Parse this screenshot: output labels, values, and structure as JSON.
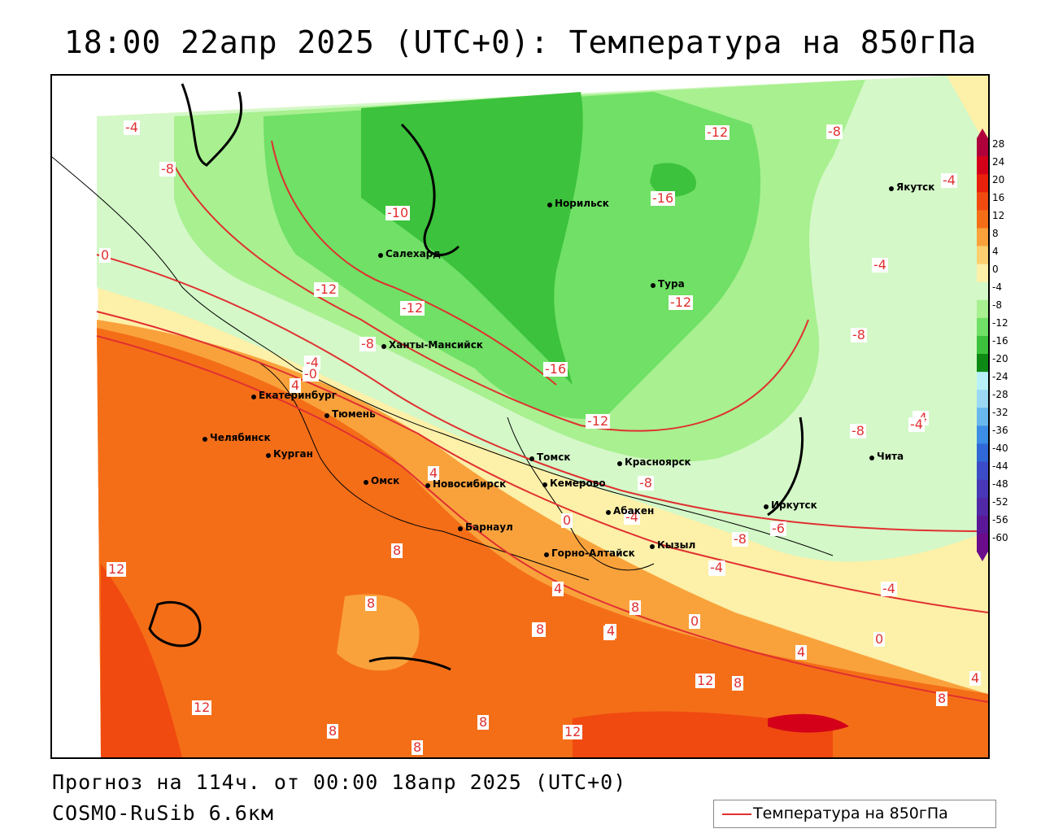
{
  "title": "18:00 22апр 2025 (UTC+0): Температура на 850гПа",
  "forecast_line": "Прогноз на 114ч. от 00:00 18апр 2025 (UTC+0)",
  "model_line": "COSMO-RuSib 6.6км",
  "legend": {
    "label": "Температура на 850гПа",
    "line_color": "#e03030"
  },
  "colorbar": {
    "labels": [
      "28",
      "24",
      "20",
      "16",
      "12",
      "8",
      "4",
      "0",
      "-4",
      "-8",
      "-12",
      "-16",
      "-20",
      "-24",
      "-28",
      "-32",
      "-36",
      "-40",
      "-44",
      "-48",
      "-52",
      "-56",
      "-60"
    ],
    "colors": [
      "#b0003c",
      "#d4001a",
      "#e8200c",
      "#f04a10",
      "#f46e18",
      "#f9a23c",
      "#fcd070",
      "#fdf0a8",
      "#d4f8c8",
      "#a8f090",
      "#70e066",
      "#3cc23c",
      "#0e8a14",
      "#b8f0f8",
      "#9ad8f4",
      "#68b8ee",
      "#3c8ee6",
      "#3068d8",
      "#3c4cc8",
      "#4838b8",
      "#5028a8",
      "#5a1898",
      "#6a0c8c"
    ]
  },
  "cities": [
    {
      "name": "Норильск"
    },
    {
      "name": "Салехард"
    },
    {
      "name": "Тура"
    },
    {
      "name": "Якутск"
    },
    {
      "name": "Ханты-Мансийск"
    },
    {
      "name": "Екатеринбург"
    },
    {
      "name": "Тюмень"
    },
    {
      "name": "Челябинск"
    },
    {
      "name": "Курган"
    },
    {
      "name": "Омск"
    },
    {
      "name": "Новосибирск"
    },
    {
      "name": "Томск"
    },
    {
      "name": "Кемерово"
    },
    {
      "name": "Красноярск"
    },
    {
      "name": "Барнаул"
    },
    {
      "name": "Абакен"
    },
    {
      "name": "Иркутск"
    },
    {
      "name": "Горно-Алтайск"
    },
    {
      "name": "Кызыл"
    },
    {
      "name": "Чита"
    }
  ],
  "isotherm_labels": [
    "-4",
    "-8",
    "-10",
    "0",
    "-12",
    "-12",
    "-8",
    "-4",
    "-0",
    "4",
    "-12",
    "-16",
    "-8",
    "-16",
    "-12",
    "-12",
    "-4",
    "-8",
    "-4",
    "-8",
    "-4",
    "4",
    "8",
    "8",
    "12",
    "12",
    "8",
    "8",
    "8",
    "4",
    "0",
    "-4",
    "-8",
    "8",
    "-8",
    "-4",
    "4",
    "8",
    "0",
    "-4",
    "4",
    "12",
    "8",
    "12",
    "-4",
    "0",
    "4",
    "8",
    "-4",
    "4",
    "8",
    "-6"
  ]
}
